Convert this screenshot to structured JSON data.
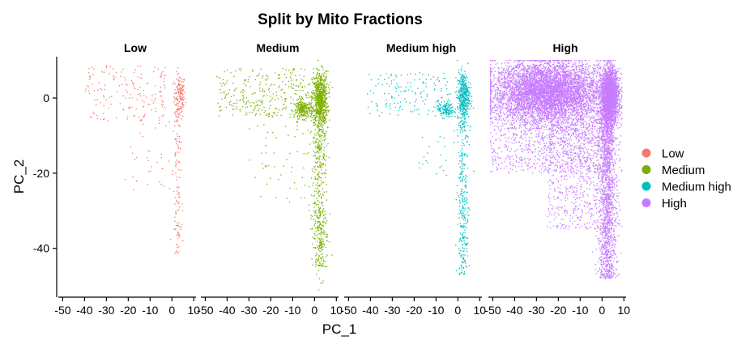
{
  "chart_data": {
    "type": "scatter",
    "title": "Split by Mito Fractions",
    "xlabel": "PC_1",
    "ylabel": "PC_2",
    "xlim": [
      -52,
      11
    ],
    "ylim": [
      -53,
      11
    ],
    "x_ticks": [
      -50,
      -40,
      -30,
      -20,
      -10,
      0,
      10
    ],
    "y_ticks": [
      0,
      -20,
      -40
    ],
    "x_tick_labels": [
      "-50",
      "-40",
      "-30",
      "-20",
      "-10",
      "0",
      "10"
    ],
    "y_tick_labels": [
      "0",
      "-20",
      "-40"
    ],
    "grid": false,
    "legend_position": "right",
    "panels": [
      {
        "name": "Low",
        "color": "#F8766D",
        "clusters": [
          {
            "kind": "cluster",
            "n": 150,
            "cx": 3.5,
            "cy": 0.5,
            "sx": 1.3,
            "sy": 3.0
          },
          {
            "kind": "band",
            "n": 90,
            "x": 2.5,
            "xspread": 0.9,
            "y_from": -38,
            "y_to": -2
          },
          {
            "kind": "band",
            "n": 18,
            "x": 2.5,
            "xspread": 0.7,
            "y_from": -42,
            "y_to": -33
          },
          {
            "kind": "cloud",
            "n": 170,
            "x_from": -40,
            "x_to": -2,
            "y_from": -6,
            "y_to": 9
          },
          {
            "kind": "cloud",
            "n": 40,
            "x_from": -22,
            "x_to": 2,
            "y_from": -25,
            "y_to": -6
          }
        ]
      },
      {
        "name": "Medium",
        "color": "#7CAE00",
        "clusters": [
          {
            "kind": "cluster",
            "n": 700,
            "cx": 2.5,
            "cy": 0.0,
            "sx": 1.8,
            "sy": 3.5
          },
          {
            "kind": "cluster",
            "n": 220,
            "cx": -5,
            "cy": -3,
            "sx": 2.2,
            "sy": 1.2
          },
          {
            "kind": "band",
            "n": 520,
            "x": 2.5,
            "xspread": 1.6,
            "y_from": -45,
            "y_to": -3
          },
          {
            "kind": "cloud",
            "n": 300,
            "x_from": -45,
            "x_to": -3,
            "y_from": -5,
            "y_to": 8
          },
          {
            "kind": "cloud",
            "n": 60,
            "x_from": -30,
            "x_to": 0,
            "y_from": -28,
            "y_to": -5
          },
          {
            "kind": "band",
            "n": 8,
            "x": 2.5,
            "xspread": 1.0,
            "y_from": -52,
            "y_to": -44
          }
        ]
      },
      {
        "name": "Medium high",
        "color": "#00BFC4",
        "clusters": [
          {
            "kind": "cluster",
            "n": 420,
            "cx": 2.5,
            "cy": 0.5,
            "sx": 1.4,
            "sy": 3.2
          },
          {
            "kind": "cluster",
            "n": 130,
            "cx": -5.5,
            "cy": -3,
            "sx": 1.8,
            "sy": 1.1
          },
          {
            "kind": "band",
            "n": 300,
            "x": 2.3,
            "xspread": 1.3,
            "y_from": -47,
            "y_to": -4
          },
          {
            "kind": "cloud",
            "n": 150,
            "x_from": -42,
            "x_to": -3,
            "y_from": -5,
            "y_to": 7
          },
          {
            "kind": "cloud",
            "n": 20,
            "x_from": -18,
            "x_to": -5,
            "y_from": -21,
            "y_to": -10
          }
        ]
      },
      {
        "name": "High",
        "color": "#C77CFF",
        "clusters": [
          {
            "kind": "cluster",
            "n": 5200,
            "cx": -25,
            "cy": 1.5,
            "sx": 12,
            "sy": 4.0
          },
          {
            "kind": "cluster",
            "n": 2500,
            "cx": 3.5,
            "cy": 0.5,
            "sx": 2.0,
            "sy": 3.5
          },
          {
            "kind": "band",
            "n": 1500,
            "x": 2.5,
            "xspread": 2.2,
            "y_from": -48,
            "y_to": -3
          },
          {
            "kind": "cloud",
            "n": 1800,
            "x_from": -52,
            "x_to": 5,
            "y_from": -20,
            "y_to": 9
          },
          {
            "kind": "cloud",
            "n": 700,
            "x_from": -25,
            "x_to": 3,
            "y_from": -35,
            "y_to": -5
          }
        ]
      }
    ]
  }
}
